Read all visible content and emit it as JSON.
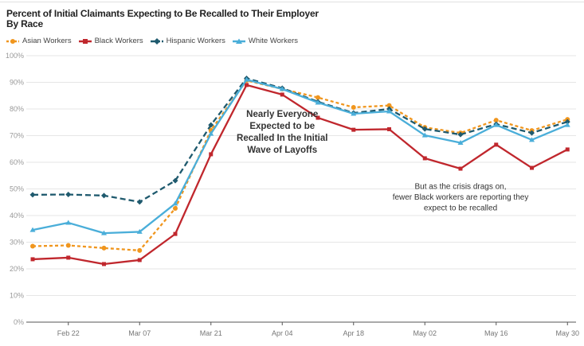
{
  "chart_data": {
    "type": "line",
    "title": "Percent of Initial Claimants Expecting to Be Recalled to Their Employer",
    "subtitle": "By Race",
    "xlabel": "",
    "ylabel": "",
    "ylim": [
      0,
      100
    ],
    "yticks": [
      "0%",
      "10%",
      "20%",
      "30%",
      "40%",
      "50%",
      "60%",
      "70%",
      "80%",
      "90%",
      "100%"
    ],
    "xtick_labels": [
      "Feb 22",
      "Mar 07",
      "Mar 21",
      "Apr 04",
      "Apr 18",
      "May 02",
      "May 16",
      "May 30"
    ],
    "xtick_index": [
      1,
      3,
      5,
      7,
      9,
      11,
      13,
      15
    ],
    "x": [
      "Feb 15",
      "Feb 22",
      "Feb 29",
      "Mar 07",
      "Mar 14",
      "Mar 21",
      "Mar 28",
      "Apr 04",
      "Apr 11",
      "Apr 18",
      "Apr 25",
      "May 02",
      "May 09",
      "May 16",
      "May 23",
      "May 30"
    ],
    "grid": true,
    "legend_position": "top-left",
    "series": [
      {
        "name": "Asian Workers",
        "color": "#f0961e",
        "marker": "circle",
        "dash": "dotted",
        "values": [
          28.5,
          28.8,
          27.8,
          26.9,
          42.7,
          72.0,
          90.7,
          87.5,
          84.3,
          80.6,
          81.3,
          73.1,
          71.0,
          75.8,
          71.9,
          76.1
        ]
      },
      {
        "name": "Black Workers",
        "color": "#c0272d",
        "marker": "square",
        "dash": "solid",
        "values": [
          23.6,
          24.2,
          21.8,
          23.3,
          33.1,
          63.0,
          89.0,
          85.4,
          76.7,
          72.2,
          72.4,
          61.5,
          57.6,
          66.6,
          57.9,
          64.8
        ]
      },
      {
        "name": "Hispanic Workers",
        "color": "#1f5a6e",
        "marker": "diamond",
        "dash": "dashed",
        "values": [
          47.8,
          47.9,
          47.5,
          45.1,
          53.1,
          74.0,
          91.5,
          87.8,
          82.7,
          78.5,
          80.0,
          72.5,
          70.4,
          74.3,
          71.0,
          75.2
        ]
      },
      {
        "name": "White Workers",
        "color": "#4aaed9",
        "marker": "triangle",
        "dash": "solid",
        "values": [
          34.6,
          37.3,
          33.4,
          33.9,
          44.5,
          70.7,
          91.0,
          87.5,
          82.4,
          78.2,
          79.1,
          70.1,
          67.3,
          74.0,
          68.4,
          74.0
        ]
      }
    ],
    "annotations": [
      {
        "lines": [
          "Nearly Everyone",
          "Expected to be",
          "Recalled In the Initial",
          "Wave of Layoffs"
        ],
        "anchor_x": "Apr 04",
        "anchor_y": 77
      },
      {
        "lines": [
          "But as the crisis drags on,",
          "fewer Black workers are reporting they",
          "expect to be recalled"
        ],
        "anchor_x": "May 09",
        "anchor_y": 50
      }
    ]
  }
}
